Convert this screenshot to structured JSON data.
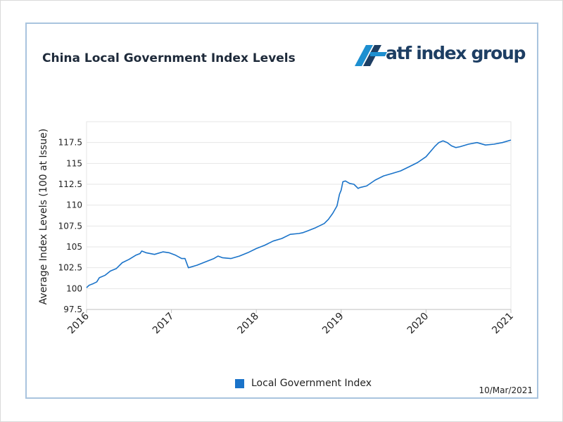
{
  "header": {
    "title": "China Local Government Index Levels",
    "logo_text": "atf index group",
    "date": "10/Mar/2021"
  },
  "colors": {
    "line": "#1a73c9",
    "logo": "#1d3e63",
    "grid": "#e6e6e6",
    "frame": "#a9c4de"
  },
  "chart_data": {
    "type": "line",
    "title": "China Local Government Index Levels",
    "xlabel": "",
    "ylabel": "Average Index Levels (100 at Issue)",
    "xlim": [
      2016.0,
      2021.0
    ],
    "ylim": [
      97.5,
      120
    ],
    "yticks": [
      97.5,
      100,
      102.5,
      105,
      107.5,
      110,
      112.5,
      115,
      117.5
    ],
    "ytick_labels": [
      "97.5",
      "100",
      "102.5",
      "105",
      "107.5",
      "110",
      "112.5",
      "115",
      "117.5"
    ],
    "xticks": [
      2016,
      2017,
      2018,
      2019,
      2020,
      2021
    ],
    "xtick_labels": [
      "2016",
      "2017",
      "2018",
      "2019",
      "2020",
      "2021"
    ],
    "grid": true,
    "legend": "bottom-center",
    "series": [
      {
        "name": "Local Government Index",
        "x": [
          2016.0,
          2016.03,
          2016.08,
          2016.12,
          2016.15,
          2016.22,
          2016.28,
          2016.35,
          2016.42,
          2016.5,
          2016.58,
          2016.63,
          2016.65,
          2016.7,
          2016.8,
          2016.9,
          2016.97,
          2017.05,
          2017.12,
          2017.16,
          2017.2,
          2017.3,
          2017.4,
          2017.5,
          2017.55,
          2017.6,
          2017.7,
          2017.8,
          2017.9,
          2018.0,
          2018.1,
          2018.2,
          2018.3,
          2018.4,
          2018.5,
          2018.55,
          2018.6,
          2018.7,
          2018.8,
          2018.85,
          2018.9,
          2018.95,
          2018.98,
          2019.0,
          2019.02,
          2019.05,
          2019.1,
          2019.15,
          2019.2,
          2019.22,
          2019.3,
          2019.4,
          2019.5,
          2019.6,
          2019.7,
          2019.8,
          2019.9,
          2020.0,
          2020.1,
          2020.15,
          2020.2,
          2020.25,
          2020.3,
          2020.35,
          2020.4,
          2020.5,
          2020.6,
          2020.7,
          2020.8,
          2020.9,
          2021.0
        ],
        "values": [
          100.1,
          100.4,
          100.6,
          100.8,
          101.3,
          101.6,
          102.1,
          102.4,
          103.1,
          103.5,
          104.0,
          104.2,
          104.5,
          104.3,
          104.1,
          104.4,
          104.3,
          104.0,
          103.6,
          103.6,
          102.5,
          102.8,
          103.2,
          103.6,
          103.9,
          103.7,
          103.6,
          103.9,
          104.3,
          104.8,
          105.2,
          105.7,
          106.0,
          106.5,
          106.6,
          106.7,
          106.9,
          107.3,
          107.8,
          108.3,
          109.0,
          109.9,
          111.3,
          111.8,
          112.8,
          112.9,
          112.6,
          112.5,
          112.0,
          112.1,
          112.3,
          113.0,
          113.5,
          113.8,
          114.1,
          114.6,
          115.1,
          115.8,
          117.0,
          117.5,
          117.7,
          117.5,
          117.1,
          116.9,
          117.0,
          117.3,
          117.5,
          117.2,
          117.3,
          117.5,
          117.8
        ]
      }
    ]
  }
}
